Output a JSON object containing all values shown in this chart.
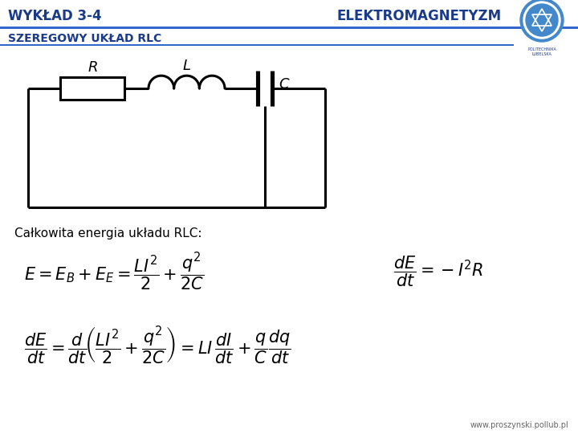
{
  "title_left": "WYKŁAD 3-4",
  "title_right": "ELEKTROMAGNETYZM",
  "subtitle": "SZEREGOWY UKŁAD RLC",
  "section_label": "Całkowita energia układu RLC:",
  "footer": "www.proszynski.pollub.pl",
  "header_text_color": "#1a3a8a",
  "subtitle_color": "#1a3a8a",
  "text_color": "#000000",
  "bg_color": "#ffffff",
  "circuit_color": "#000000",
  "blue_line_color": "#3366cc"
}
